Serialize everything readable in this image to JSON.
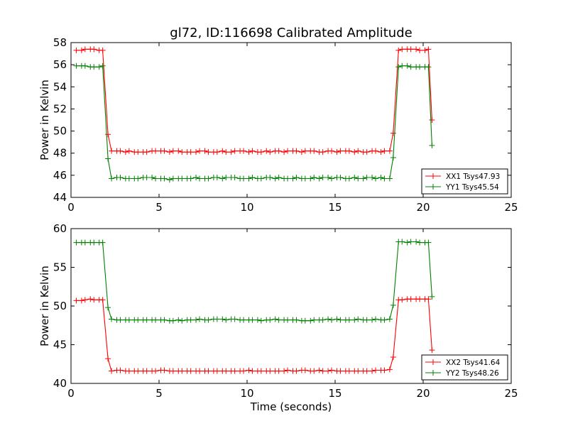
{
  "figure": {
    "title": "gl72, ID:116698 Calibrated Amplitude"
  },
  "chart_data": [
    {
      "type": "line",
      "title": "gl72, ID:116698 Calibrated Amplitude",
      "xlabel": "",
      "ylabel": "Power in Kelvin",
      "xlim": [
        0,
        25
      ],
      "ylim": [
        44,
        58
      ],
      "x_ticks": [
        0,
        5,
        10,
        15,
        20,
        25
      ],
      "y_ticks": [
        44,
        46,
        48,
        50,
        52,
        54,
        56,
        58
      ],
      "legend_position": "lower-right",
      "grid": false,
      "series": [
        {
          "name": "XX1 Tsys47.93",
          "color": "#ff0000",
          "x": [
            0.3,
            0.6,
            0.8,
            1.1,
            1.3,
            1.6,
            1.8,
            2.1,
            2.3,
            2.6,
            2.8,
            3.1,
            3.3,
            3.6,
            3.8,
            4.1,
            4.3,
            4.6,
            4.8,
            5.1,
            5.3,
            5.6,
            5.8,
            6.1,
            6.3,
            6.6,
            6.8,
            7.1,
            7.3,
            7.6,
            7.8,
            8.1,
            8.3,
            8.6,
            8.8,
            9.1,
            9.3,
            9.6,
            9.8,
            10.1,
            10.3,
            10.6,
            10.8,
            11.1,
            11.3,
            11.6,
            11.8,
            12.1,
            12.3,
            12.6,
            12.8,
            13.1,
            13.3,
            13.6,
            13.8,
            14.1,
            14.3,
            14.6,
            14.8,
            15.1,
            15.3,
            15.6,
            15.8,
            16.1,
            16.3,
            16.6,
            16.8,
            17.1,
            17.3,
            17.6,
            17.8,
            18.1,
            18.3,
            18.6,
            18.8,
            19.1,
            19.3,
            19.6,
            19.8,
            20.1,
            20.3,
            20.5
          ],
          "y": [
            57.3,
            57.3,
            57.4,
            57.4,
            57.4,
            57.3,
            57.3,
            49.7,
            48.2,
            48.2,
            48.2,
            48.1,
            48.2,
            48.1,
            48.1,
            48.1,
            48.1,
            48.2,
            48.2,
            48.2,
            48.2,
            48.1,
            48.2,
            48.2,
            48.1,
            48.1,
            48.1,
            48.1,
            48.2,
            48.2,
            48.1,
            48.1,
            48.1,
            48.2,
            48.1,
            48.1,
            48.2,
            48.2,
            48.2,
            48.1,
            48.2,
            48.1,
            48.1,
            48.2,
            48.1,
            48.2,
            48.2,
            48.1,
            48.2,
            48.2,
            48.2,
            48.1,
            48.2,
            48.2,
            48.2,
            48.1,
            48.1,
            48.2,
            48.2,
            48.1,
            48.2,
            48.2,
            48.2,
            48.1,
            48.2,
            48.1,
            48.1,
            48.2,
            48.2,
            48.1,
            48.2,
            48.2,
            49.8,
            57.3,
            57.4,
            57.4,
            57.4,
            57.4,
            57.3,
            57.3,
            57.4,
            51.0
          ]
        },
        {
          "name": "YY1 Tsys45.54",
          "color": "#008000",
          "x": [
            0.3,
            0.6,
            0.8,
            1.1,
            1.3,
            1.6,
            1.8,
            2.1,
            2.3,
            2.6,
            2.8,
            3.1,
            3.3,
            3.6,
            3.8,
            4.1,
            4.3,
            4.6,
            4.8,
            5.1,
            5.3,
            5.6,
            5.8,
            6.1,
            6.3,
            6.6,
            6.8,
            7.1,
            7.3,
            7.6,
            7.8,
            8.1,
            8.3,
            8.6,
            8.8,
            9.1,
            9.3,
            9.6,
            9.8,
            10.1,
            10.3,
            10.6,
            10.8,
            11.1,
            11.3,
            11.6,
            11.8,
            12.1,
            12.3,
            12.6,
            12.8,
            13.1,
            13.3,
            13.6,
            13.8,
            14.1,
            14.3,
            14.6,
            14.8,
            15.1,
            15.3,
            15.6,
            15.8,
            16.1,
            16.3,
            16.6,
            16.8,
            17.1,
            17.3,
            17.6,
            17.8,
            18.1,
            18.3,
            18.6,
            18.8,
            19.1,
            19.3,
            19.6,
            19.8,
            20.1,
            20.3,
            20.5
          ],
          "y": [
            55.9,
            55.9,
            55.9,
            55.8,
            55.8,
            55.8,
            55.9,
            47.5,
            45.7,
            45.8,
            45.8,
            45.7,
            45.7,
            45.7,
            45.7,
            45.8,
            45.8,
            45.8,
            45.7,
            45.7,
            45.7,
            45.6,
            45.7,
            45.7,
            45.7,
            45.7,
            45.7,
            45.8,
            45.7,
            45.7,
            45.7,
            45.8,
            45.8,
            45.7,
            45.8,
            45.8,
            45.8,
            45.7,
            45.7,
            45.7,
            45.8,
            45.7,
            45.7,
            45.8,
            45.8,
            45.7,
            45.8,
            45.7,
            45.7,
            45.7,
            45.8,
            45.7,
            45.7,
            45.7,
            45.8,
            45.7,
            45.8,
            45.8,
            45.7,
            45.8,
            45.8,
            45.7,
            45.7,
            45.8,
            45.7,
            45.7,
            45.8,
            45.8,
            45.7,
            45.8,
            45.7,
            45.7,
            47.6,
            55.8,
            55.9,
            55.9,
            55.8,
            55.8,
            55.8,
            55.8,
            55.8,
            48.7
          ]
        }
      ]
    },
    {
      "type": "line",
      "title": "",
      "xlabel": "Time (seconds)",
      "ylabel": "Power in Kelvin",
      "xlim": [
        0,
        25
      ],
      "ylim": [
        40,
        60
      ],
      "x_ticks": [
        0,
        5,
        10,
        15,
        20,
        25
      ],
      "y_ticks": [
        40,
        45,
        50,
        55,
        60
      ],
      "legend_position": "lower-right",
      "grid": false,
      "series": [
        {
          "name": "XX2 Tsys41.64",
          "color": "#ff0000",
          "x": [
            0.3,
            0.6,
            0.8,
            1.1,
            1.3,
            1.6,
            1.8,
            2.1,
            2.3,
            2.6,
            2.8,
            3.1,
            3.3,
            3.6,
            3.8,
            4.1,
            4.3,
            4.6,
            4.8,
            5.1,
            5.3,
            5.6,
            5.8,
            6.1,
            6.3,
            6.6,
            6.8,
            7.1,
            7.3,
            7.6,
            7.8,
            8.1,
            8.3,
            8.6,
            8.8,
            9.1,
            9.3,
            9.6,
            9.8,
            10.1,
            10.3,
            10.6,
            10.8,
            11.1,
            11.3,
            11.6,
            11.8,
            12.1,
            12.3,
            12.6,
            12.8,
            13.1,
            13.3,
            13.6,
            13.8,
            14.1,
            14.3,
            14.6,
            14.8,
            15.1,
            15.3,
            15.6,
            15.8,
            16.1,
            16.3,
            16.6,
            16.8,
            17.1,
            17.3,
            17.6,
            17.8,
            18.1,
            18.3,
            18.6,
            18.8,
            19.1,
            19.3,
            19.6,
            19.8,
            20.1,
            20.3,
            20.5
          ],
          "y": [
            50.7,
            50.7,
            50.8,
            50.9,
            50.8,
            50.8,
            50.8,
            43.2,
            41.6,
            41.7,
            41.7,
            41.6,
            41.6,
            41.6,
            41.6,
            41.6,
            41.6,
            41.6,
            41.6,
            41.7,
            41.7,
            41.6,
            41.6,
            41.6,
            41.6,
            41.6,
            41.6,
            41.6,
            41.6,
            41.6,
            41.6,
            41.6,
            41.6,
            41.6,
            41.6,
            41.6,
            41.6,
            41.6,
            41.6,
            41.7,
            41.6,
            41.6,
            41.6,
            41.6,
            41.6,
            41.6,
            41.6,
            41.6,
            41.7,
            41.6,
            41.6,
            41.7,
            41.7,
            41.6,
            41.6,
            41.7,
            41.6,
            41.6,
            41.7,
            41.6,
            41.6,
            41.6,
            41.6,
            41.6,
            41.6,
            41.6,
            41.6,
            41.6,
            41.7,
            41.7,
            41.7,
            41.8,
            43.4,
            50.8,
            50.8,
            50.9,
            50.9,
            50.9,
            50.9,
            50.9,
            50.9,
            44.3
          ]
        },
        {
          "name": "YY2 Tsys48.26",
          "color": "#008000",
          "x": [
            0.3,
            0.6,
            0.8,
            1.1,
            1.3,
            1.6,
            1.8,
            2.1,
            2.3,
            2.6,
            2.8,
            3.1,
            3.3,
            3.6,
            3.8,
            4.1,
            4.3,
            4.6,
            4.8,
            5.1,
            5.3,
            5.6,
            5.8,
            6.1,
            6.3,
            6.6,
            6.8,
            7.1,
            7.3,
            7.6,
            7.8,
            8.1,
            8.3,
            8.6,
            8.8,
            9.1,
            9.3,
            9.6,
            9.8,
            10.1,
            10.3,
            10.6,
            10.8,
            11.1,
            11.3,
            11.6,
            11.8,
            12.1,
            12.3,
            12.6,
            12.8,
            13.1,
            13.3,
            13.6,
            13.8,
            14.1,
            14.3,
            14.6,
            14.8,
            15.1,
            15.3,
            15.6,
            15.8,
            16.1,
            16.3,
            16.6,
            16.8,
            17.1,
            17.3,
            17.6,
            17.8,
            18.1,
            18.3,
            18.6,
            18.8,
            19.1,
            19.3,
            19.6,
            19.8,
            20.1,
            20.3,
            20.5
          ],
          "y": [
            58.2,
            58.2,
            58.2,
            58.2,
            58.2,
            58.2,
            58.2,
            49.8,
            48.3,
            48.2,
            48.2,
            48.2,
            48.2,
            48.2,
            48.2,
            48.2,
            48.2,
            48.2,
            48.2,
            48.2,
            48.2,
            48.1,
            48.1,
            48.2,
            48.1,
            48.2,
            48.2,
            48.2,
            48.3,
            48.2,
            48.2,
            48.3,
            48.3,
            48.3,
            48.2,
            48.3,
            48.3,
            48.2,
            48.2,
            48.2,
            48.2,
            48.2,
            48.1,
            48.2,
            48.2,
            48.3,
            48.2,
            48.2,
            48.2,
            48.2,
            48.2,
            48.1,
            48.1,
            48.1,
            48.2,
            48.2,
            48.2,
            48.3,
            48.2,
            48.3,
            48.2,
            48.2,
            48.2,
            48.2,
            48.3,
            48.2,
            48.2,
            48.2,
            48.3,
            48.2,
            48.2,
            48.3,
            50.1,
            58.3,
            58.3,
            58.2,
            58.3,
            58.3,
            58.2,
            58.2,
            58.2,
            51.2
          ]
        }
      ]
    }
  ]
}
